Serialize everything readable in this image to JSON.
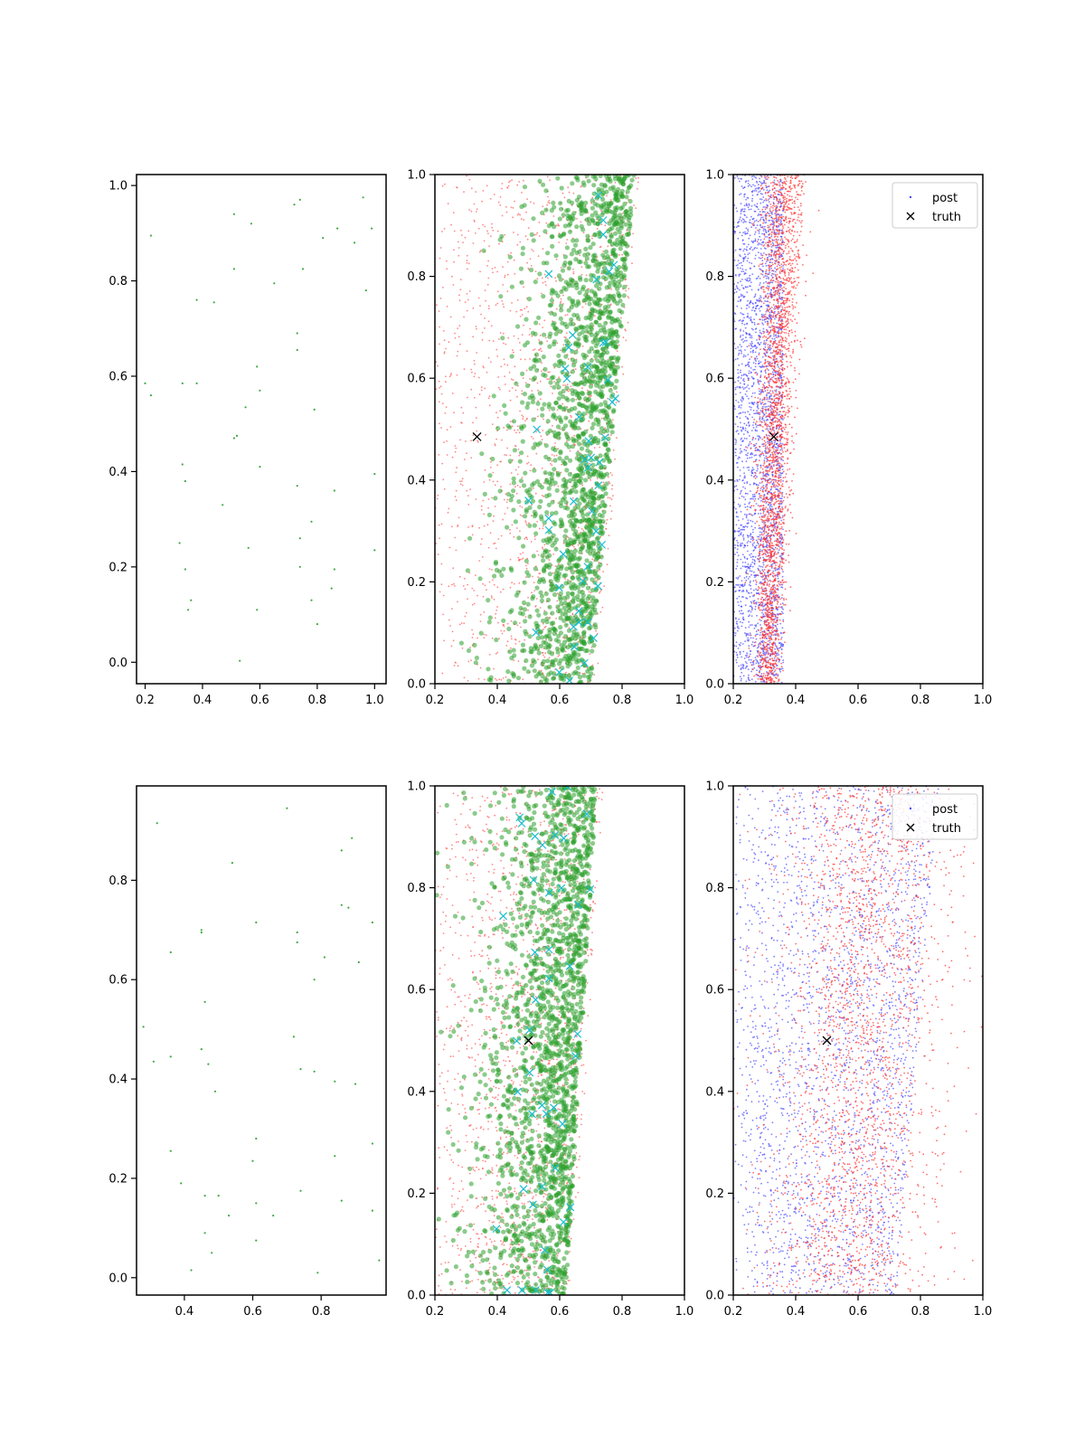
{
  "chart_data": [
    {
      "type": "scatter",
      "panel": "top-left",
      "xlim": [
        0.17,
        1.04
      ],
      "ylim": [
        -0.045,
        1.023
      ],
      "xticks": [
        "0.2",
        "0.4",
        "0.6",
        "0.8",
        "1.0"
      ],
      "yticks": [
        "0.0",
        "0.2",
        "0.4",
        "0.6",
        "0.8",
        "1.0"
      ],
      "grid": false,
      "series": [
        {
          "color": "#2ca02c",
          "x": [
            0.22,
            0.51,
            0.57,
            0.72,
            0.74,
            0.96,
            0.99,
            0.51,
            0.65,
            0.75,
            0.82,
            0.87,
            0.93,
            0.97,
            0.38,
            0.44,
            0.73,
            0.59,
            0.73,
            0.2,
            0.22,
            0.33,
            0.38,
            0.55,
            0.6,
            0.79,
            0.51,
            0.52,
            0.33,
            0.34,
            0.6,
            0.73,
            0.86,
            0.47,
            0.78,
            0.32,
            0.56,
            0.74,
            0.34,
            0.74,
            0.86,
            0.36,
            0.78,
            0.85,
            0.35,
            0.59,
            0.8,
            0.53,
            1.0,
            1.0
          ],
          "y": [
            0.895,
            0.94,
            0.92,
            0.96,
            0.97,
            0.975,
            0.91,
            0.825,
            0.795,
            0.825,
            0.89,
            0.91,
            0.88,
            0.78,
            0.76,
            0.755,
            0.69,
            0.62,
            0.655,
            0.585,
            0.56,
            0.585,
            0.585,
            0.535,
            0.57,
            0.53,
            0.47,
            0.475,
            0.415,
            0.38,
            0.41,
            0.37,
            0.36,
            0.33,
            0.295,
            0.25,
            0.24,
            0.26,
            0.195,
            0.2,
            0.195,
            0.13,
            0.13,
            0.155,
            0.11,
            0.11,
            0.08,
            0.003,
            0.395,
            0.235
          ]
        }
      ]
    },
    {
      "type": "scatter",
      "panel": "top-middle",
      "xlim": [
        0.2,
        1.0
      ],
      "ylim": [
        0.0,
        1.0
      ],
      "xticks": [
        "0.2",
        "0.4",
        "0.6",
        "0.8",
        "1.0"
      ],
      "yticks": [
        "0.0",
        "0.2",
        "0.4",
        "0.6",
        "0.8",
        "1.0"
      ],
      "grid": false,
      "cloud": {
        "n_green": 1800,
        "n_red": 1500,
        "n_cyan": 48,
        "x_left": 0.2,
        "x_right_bottom": 0.7,
        "x_right_top": 0.84,
        "density_peak": 0.66
      },
      "truth": {
        "x": 0.335,
        "y": 0.485
      },
      "colors": {
        "samples": "#2ca02c",
        "proposal": "#ff6060",
        "markers": "#17becf",
        "truth": "#000000"
      }
    },
    {
      "type": "scatter",
      "panel": "top-right",
      "xlim": [
        0.2,
        1.0
      ],
      "ylim": [
        0.0,
        1.0
      ],
      "xticks": [
        "0.2",
        "0.4",
        "0.6",
        "0.8",
        "1.0"
      ],
      "yticks": [
        "0.0",
        "0.2",
        "0.4",
        "0.6",
        "0.8",
        "1.0"
      ],
      "grid": false,
      "cloud": {
        "n_blue": 2600,
        "n_red": 2600,
        "blue_x": [
          0.2,
          0.36
        ],
        "red_x_bottom": [
          0.28,
          0.34
        ],
        "red_x_top": [
          0.31,
          0.41
        ]
      },
      "truth": {
        "x": 0.33,
        "y": 0.485
      },
      "legend": {
        "placement": "upper right",
        "entries": [
          "post",
          "truth"
        ]
      },
      "colors": {
        "post": "#4a4aff",
        "other": "#ff3030",
        "truth": "#000000"
      }
    },
    {
      "type": "scatter",
      "panel": "bottom-left",
      "xlim": [
        0.26,
        0.99
      ],
      "ylim": [
        -0.035,
        0.99
      ],
      "xticks": [
        "0.4",
        "0.6",
        "0.8"
      ],
      "yticks": [
        "0.0",
        "0.2",
        "0.4",
        "0.6",
        "0.8"
      ],
      "grid": false,
      "series": [
        {
          "color": "#2ca02c",
          "x": [
            0.32,
            0.7,
            0.54,
            0.86,
            0.89,
            0.86,
            0.88,
            0.95,
            0.61,
            0.45,
            0.45,
            0.73,
            0.73,
            0.36,
            0.81,
            0.78,
            0.91,
            0.46,
            0.28,
            0.31,
            0.36,
            0.45,
            0.47,
            0.49,
            0.72,
            0.74,
            0.78,
            0.84,
            0.9,
            0.61,
            0.95,
            0.36,
            0.6,
            0.84,
            0.39,
            0.46,
            0.5,
            0.74,
            0.61,
            0.86,
            0.95,
            0.53,
            0.66,
            0.46,
            0.61,
            0.48,
            0.42,
            0.79,
            0.97
          ],
          "y": [
            0.915,
            0.945,
            0.835,
            0.86,
            0.885,
            0.75,
            0.745,
            0.715,
            0.715,
            0.7,
            0.695,
            0.695,
            0.675,
            0.655,
            0.645,
            0.6,
            0.635,
            0.555,
            0.505,
            0.435,
            0.445,
            0.46,
            0.43,
            0.375,
            0.485,
            0.42,
            0.415,
            0.395,
            0.39,
            0.28,
            0.27,
            0.255,
            0.235,
            0.245,
            0.19,
            0.165,
            0.165,
            0.175,
            0.15,
            0.155,
            0.135,
            0.125,
            0.125,
            0.09,
            0.075,
            0.05,
            0.015,
            0.01,
            0.035
          ]
        }
      ]
    },
    {
      "type": "scatter",
      "panel": "bottom-middle",
      "xlim": [
        0.2,
        1.0
      ],
      "ylim": [
        0.0,
        1.0
      ],
      "xticks": [
        "0.2",
        "0.4",
        "0.6",
        "0.8",
        "1.0"
      ],
      "yticks": [
        "0.0",
        "0.2",
        "0.4",
        "0.6",
        "0.8",
        "1.0"
      ],
      "grid": false,
      "cloud": {
        "n_green": 1900,
        "n_red": 1500,
        "n_cyan": 45,
        "x_left": 0.2,
        "x_right_bottom": 0.62,
        "x_right_top": 0.72,
        "density_peak": 0.58
      },
      "truth": {
        "x": 0.5,
        "y": 0.5
      },
      "colors": {
        "samples": "#2ca02c",
        "proposal": "#ff6060",
        "markers": "#17becf",
        "truth": "#000000"
      }
    },
    {
      "type": "scatter",
      "panel": "bottom-right",
      "xlim": [
        0.2,
        1.0
      ],
      "ylim": [
        0.0,
        1.0
      ],
      "xticks": [
        "0.2",
        "0.4",
        "0.6",
        "0.8",
        "1.0"
      ],
      "yticks": [
        "0.0",
        "0.2",
        "0.4",
        "0.6",
        "0.8",
        "1.0"
      ],
      "grid": false,
      "cloud": {
        "n_blue": 2400,
        "n_red": 2400,
        "blue_x_bottom": [
          0.2,
          0.72
        ],
        "blue_x_top": [
          0.2,
          0.86
        ],
        "red_x_bottom": [
          0.48,
          0.64
        ],
        "red_x_top": [
          0.55,
          0.74
        ]
      },
      "truth": {
        "x": 0.5,
        "y": 0.5
      },
      "legend": {
        "placement": "upper right",
        "entries": [
          "post",
          "truth"
        ]
      },
      "colors": {
        "post": "#4a4aff",
        "other": "#ff3030",
        "truth": "#000000"
      }
    }
  ]
}
